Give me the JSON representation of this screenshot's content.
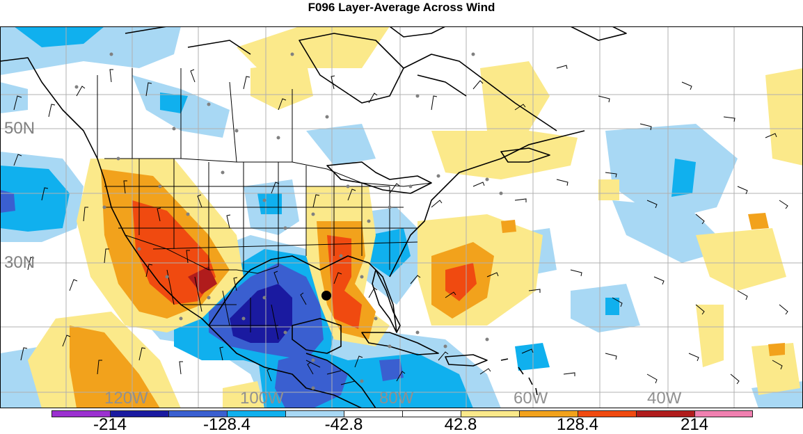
{
  "title": "F096 Layer-Average Across Wind",
  "lat_labels": [
    "50N",
    "30N"
  ],
  "lon_labels": [
    "120W",
    "100W",
    "80W",
    "60W",
    "40W"
  ],
  "colorbar": {
    "colors": [
      "#9b30d0",
      "#1a1aa0",
      "#3a5fd0",
      "#10b0ee",
      "#a8d8f4",
      "#ffffff",
      "#ffffff",
      "#fbe98a",
      "#f2a21c",
      "#f04a10",
      "#b01c1c",
      "#f080b0"
    ],
    "tick_labels": [
      "-214",
      "-128.4",
      "-42.8",
      "42.8",
      "128.4",
      "214"
    ]
  },
  "palette": {
    "light_blue": "#a8d8f4",
    "mid_blue": "#10b0ee",
    "dark_blue": "#3a5fd0",
    "navy": "#1a1aa0",
    "light_yellow": "#fbe98a",
    "orange": "#f2a21c",
    "red_orange": "#f04a10",
    "dark_red": "#b01c1c"
  }
}
